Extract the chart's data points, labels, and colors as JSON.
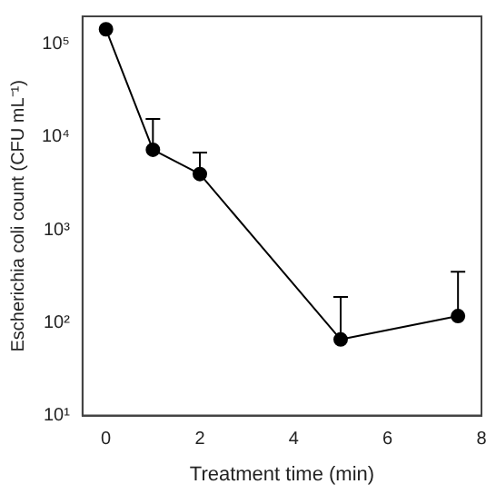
{
  "chart_data": {
    "type": "line",
    "xlabel": "Treatment time (min)",
    "ylabel": "Escherichia coli count (CFU mL⁻¹)",
    "x": [
      0,
      1,
      2,
      5,
      7.5
    ],
    "series": [
      {
        "color": "#000000",
        "values": [
          145000,
          7300,
          4000,
          66,
          118
        ],
        "errors": [
          null,
          [
            7300,
            15700
          ],
          [
            4000,
            6800
          ],
          [
            66,
            190
          ],
          [
            118,
            355
          ]
        ]
      }
    ],
    "xlim": [
      -0.5,
      8
    ],
    "xticks": [
      0,
      2,
      4,
      6,
      8
    ],
    "ylim": [
      10,
      200000
    ],
    "yticks": [
      {
        "value": 10,
        "label": "10¹"
      },
      {
        "value": 100,
        "label": "10²"
      },
      {
        "value": 1000,
        "label": "10³"
      },
      {
        "value": 10000,
        "label": "10⁴"
      },
      {
        "value": 100000,
        "label": "10⁵"
      }
    ],
    "log": "y",
    "grid": false,
    "legend": false,
    "marker": "circle",
    "line_style": "solid"
  }
}
